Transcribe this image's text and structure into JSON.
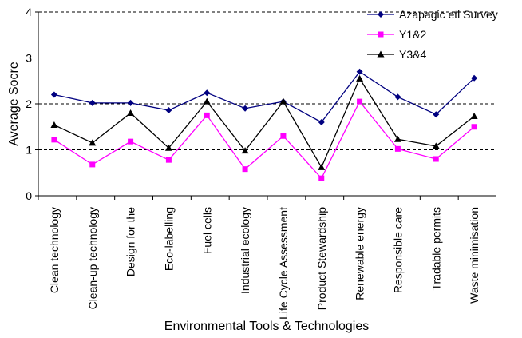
{
  "chart_data": {
    "type": "line",
    "x_label": "Environmental Tools & Technologies",
    "y_label": "Average Socre",
    "categories": [
      "Clean technology",
      "Clean-up technology",
      "Design for the",
      "Eco-labelling",
      "Fuel cells",
      "Industrial ecology",
      "Life Cycle Assessment",
      "Product Stewardship",
      "Renewable energy",
      "Responsible care",
      "Tradable permits",
      "Waste minimisation"
    ],
    "series": [
      {
        "name": "Azapagic etl Survey",
        "color": "#000080",
        "marker": "diamond",
        "values": [
          2.2,
          2.02,
          2.02,
          1.86,
          2.24,
          1.9,
          2.05,
          1.6,
          2.7,
          2.15,
          1.77,
          2.56
        ]
      },
      {
        "name": "Y1&2",
        "color": "#ff00ff",
        "marker": "square",
        "values": [
          1.22,
          0.68,
          1.18,
          0.78,
          1.75,
          0.58,
          1.3,
          0.38,
          2.05,
          1.02,
          0.8,
          1.5
        ]
      },
      {
        "name": "Y3&4",
        "color": "#000000",
        "marker": "triangle",
        "values": [
          1.54,
          1.15,
          1.8,
          1.04,
          2.05,
          0.98,
          2.05,
          0.62,
          2.55,
          1.23,
          1.08,
          1.73
        ]
      }
    ],
    "ylim": [
      0,
      4
    ],
    "yticks": [
      0,
      1,
      2,
      3,
      4
    ],
    "grid": true,
    "legend": "top-right"
  }
}
